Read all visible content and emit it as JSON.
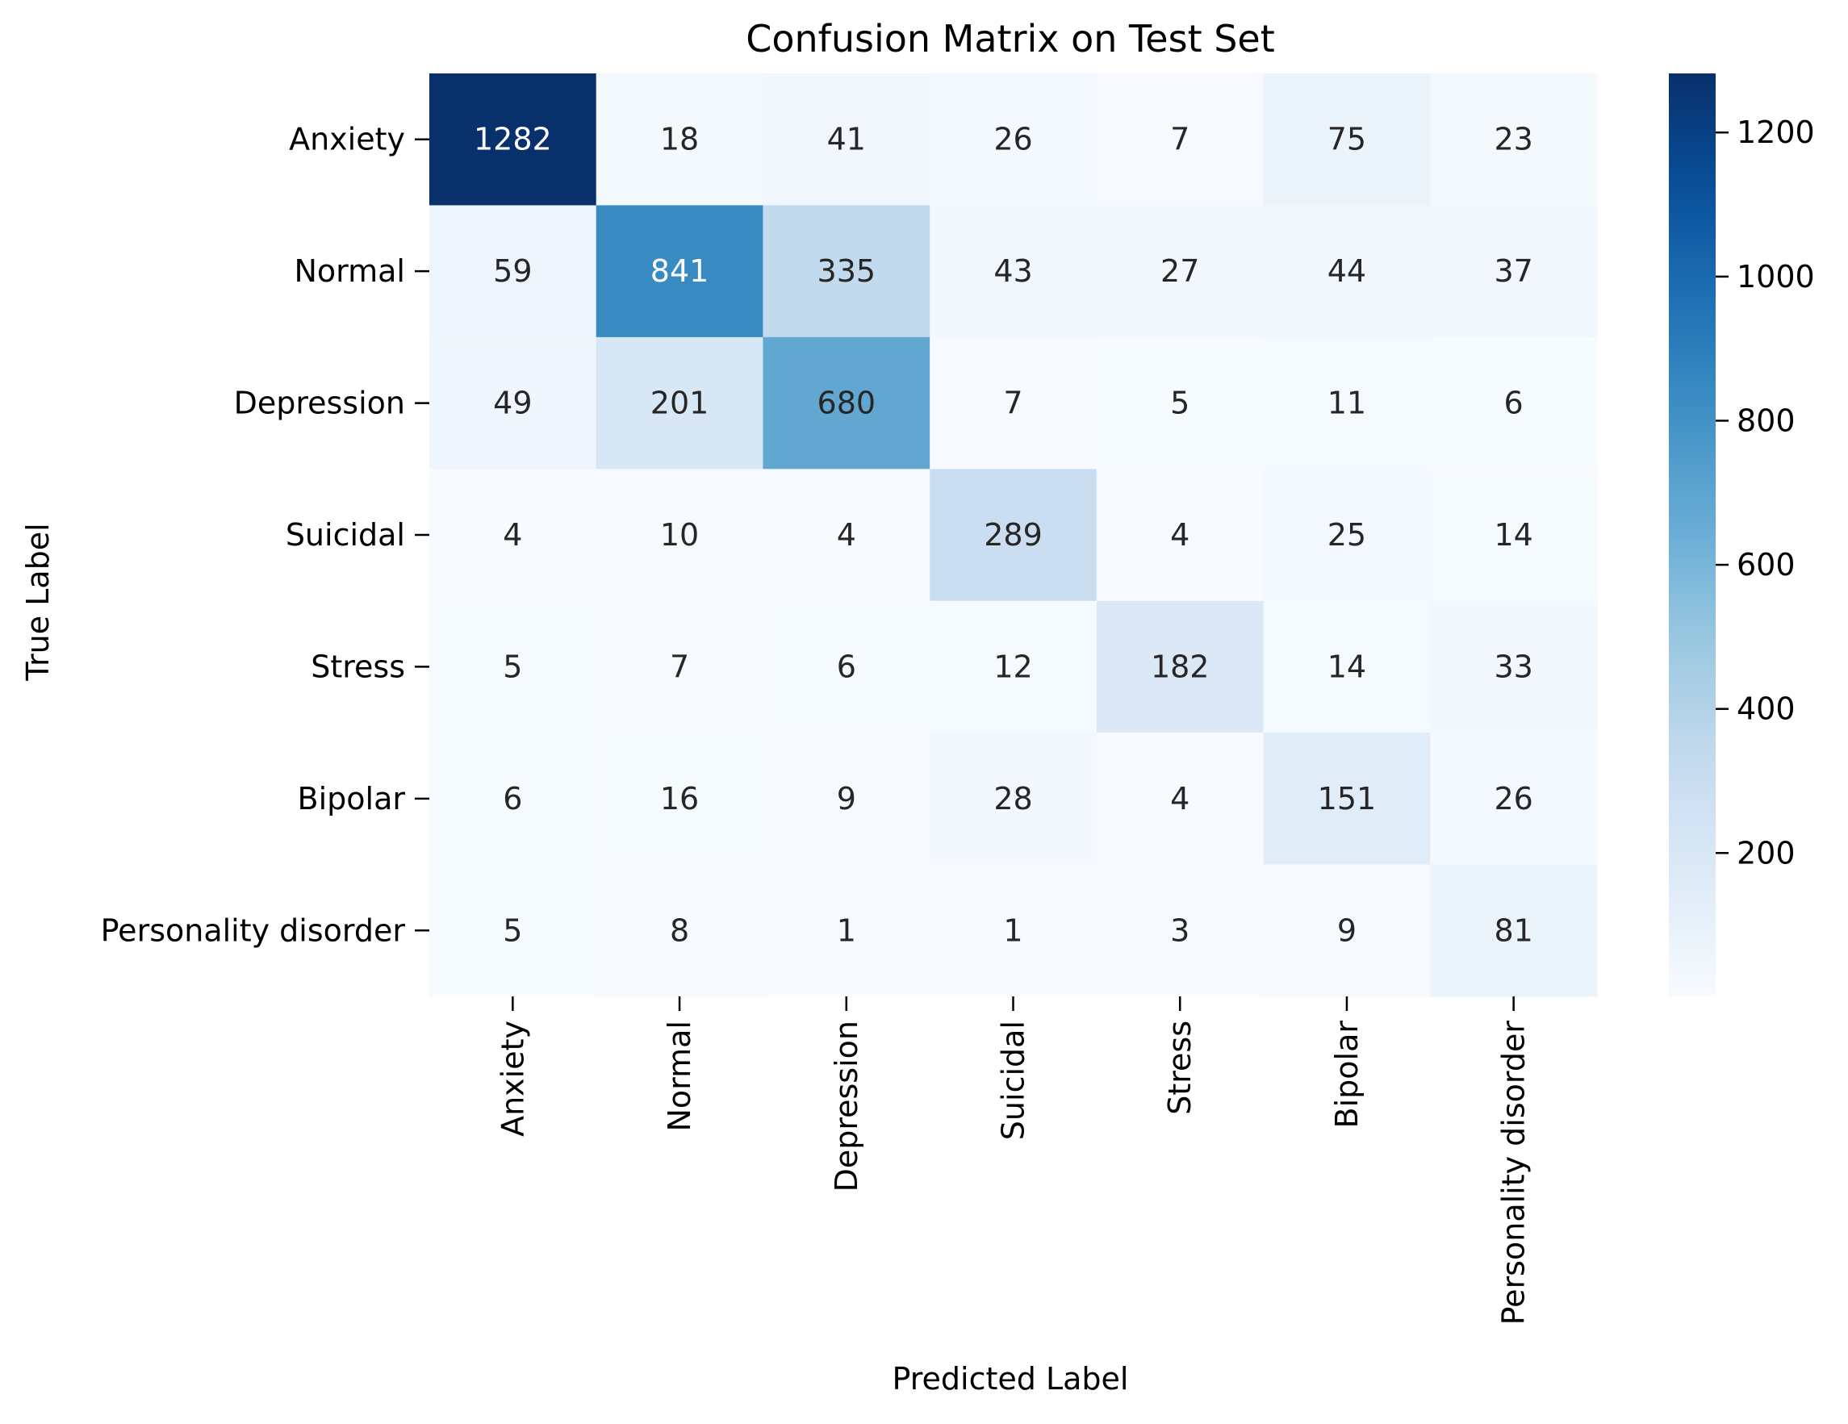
{
  "chart_data": {
    "type": "heatmap",
    "title": "Confusion Matrix on Test Set",
    "xlabel": "Predicted Label",
    "ylabel": "True Label",
    "x_categories": [
      "Anxiety",
      "Normal",
      "Depression",
      "Suicidal",
      "Stress",
      "Bipolar",
      "Personality disorder"
    ],
    "y_categories": [
      "Anxiety",
      "Normal",
      "Depression",
      "Suicidal",
      "Stress",
      "Bipolar",
      "Personality disorder"
    ],
    "values": [
      [
        1282,
        18,
        41,
        26,
        7,
        75,
        23
      ],
      [
        59,
        841,
        335,
        43,
        27,
        44,
        37
      ],
      [
        49,
        201,
        680,
        7,
        5,
        11,
        6
      ],
      [
        4,
        10,
        4,
        289,
        4,
        25,
        14
      ],
      [
        5,
        7,
        6,
        12,
        182,
        14,
        33
      ],
      [
        6,
        16,
        9,
        28,
        4,
        151,
        26
      ],
      [
        5,
        8,
        1,
        1,
        3,
        9,
        81
      ]
    ],
    "colormap": "Blues",
    "color_range": [
      1,
      1282
    ],
    "colorbar_ticks": [
      200,
      400,
      600,
      800,
      1000,
      1200
    ],
    "colors": {
      "low": "#f7fbff",
      "high": "#08306b",
      "text_dark": "#262626",
      "text_light": "#ffffff"
    }
  }
}
